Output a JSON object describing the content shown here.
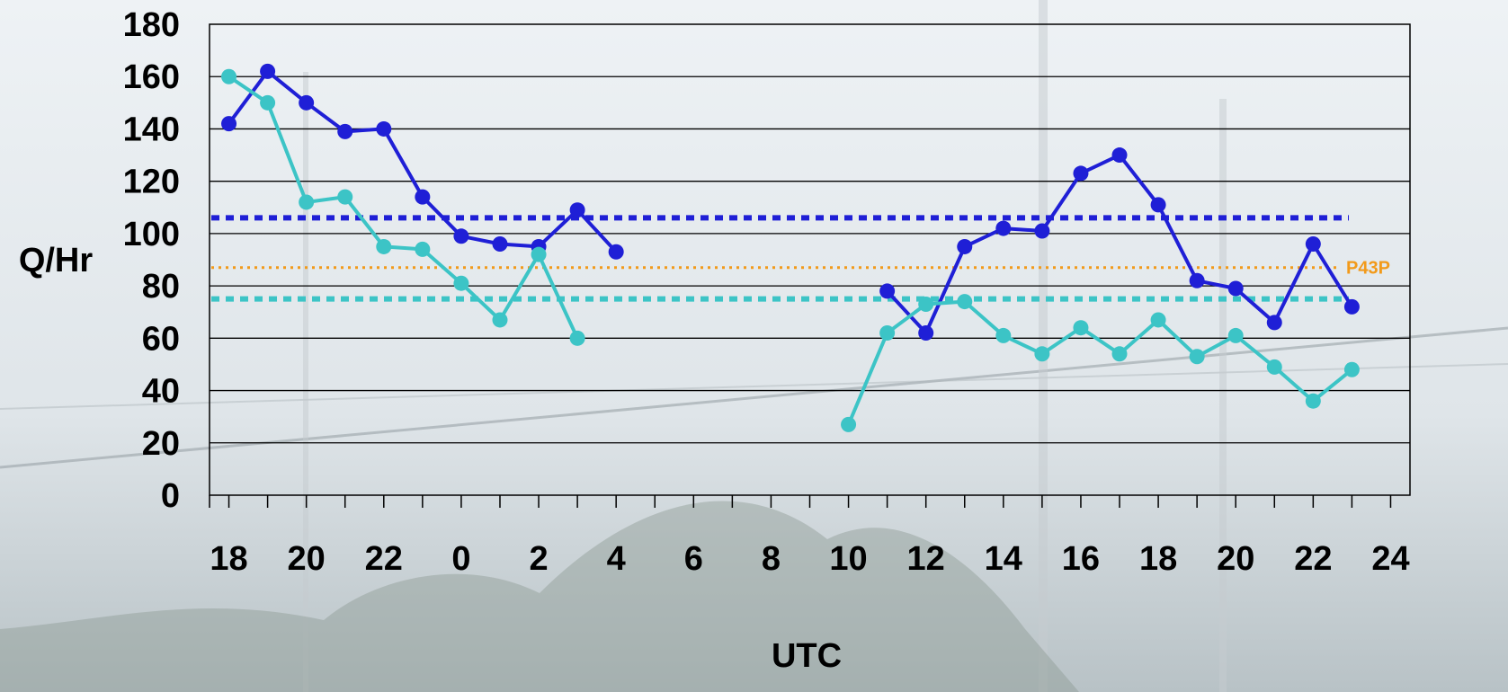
{
  "chart_data": {
    "type": "line",
    "xlabel": "UTC",
    "ylabel": "Q/Hr",
    "ylim": [
      0,
      180
    ],
    "y_ticks": [
      0,
      20,
      40,
      60,
      80,
      100,
      120,
      140,
      160,
      180
    ],
    "x_tick_labels": [
      "18",
      "20",
      "22",
      "0",
      "2",
      "4",
      "6",
      "8",
      "10",
      "12",
      "14",
      "16",
      "18",
      "20",
      "22",
      "24"
    ],
    "x_hours_range": [
      17.5,
      48.5
    ],
    "grid": true,
    "series": [
      {
        "color": "#1f1fd6",
        "segments": [
          [
            [
              18,
              142
            ],
            [
              19,
              162
            ],
            [
              20,
              150
            ],
            [
              21,
              139
            ],
            [
              22,
              140
            ],
            [
              23,
              114
            ],
            [
              24,
              99
            ],
            [
              25,
              96
            ],
            [
              26,
              95
            ],
            [
              27,
              109
            ],
            [
              28,
              93
            ]
          ],
          [
            [
              35,
              78
            ],
            [
              36,
              62
            ],
            [
              37,
              95
            ],
            [
              38,
              102
            ],
            [
              39,
              101
            ],
            [
              40,
              123
            ],
            [
              41,
              130
            ],
            [
              42,
              111
            ],
            [
              43,
              82
            ],
            [
              44,
              79
            ],
            [
              45,
              66
            ],
            [
              46,
              96
            ],
            [
              47,
              72
            ]
          ]
        ]
      },
      {
        "color": "#3cc4c6",
        "segments": [
          [
            [
              18,
              160
            ],
            [
              19,
              150
            ],
            [
              20,
              112
            ],
            [
              21,
              114
            ],
            [
              22,
              95
            ],
            [
              23,
              94
            ],
            [
              24,
              81
            ],
            [
              25,
              67
            ],
            [
              26,
              92
            ],
            [
              27,
              60
            ]
          ],
          [
            [
              34,
              27
            ],
            [
              35,
              62
            ],
            [
              36,
              73
            ],
            [
              37,
              74
            ],
            [
              38,
              61
            ],
            [
              39,
              54
            ],
            [
              40,
              64
            ],
            [
              41,
              54
            ],
            [
              42,
              67
            ],
            [
              43,
              53
            ],
            [
              44,
              61
            ],
            [
              45,
              49
            ],
            [
              46,
              36
            ],
            [
              47,
              48
            ]
          ]
        ]
      }
    ],
    "reference_lines": [
      {
        "value": 106,
        "color": "#1f1fd6",
        "label": ""
      },
      {
        "value": 87,
        "color": "#f29a1a",
        "label": "P43P"
      },
      {
        "value": 75,
        "color": "#3cc4c6",
        "label": ""
      }
    ]
  }
}
